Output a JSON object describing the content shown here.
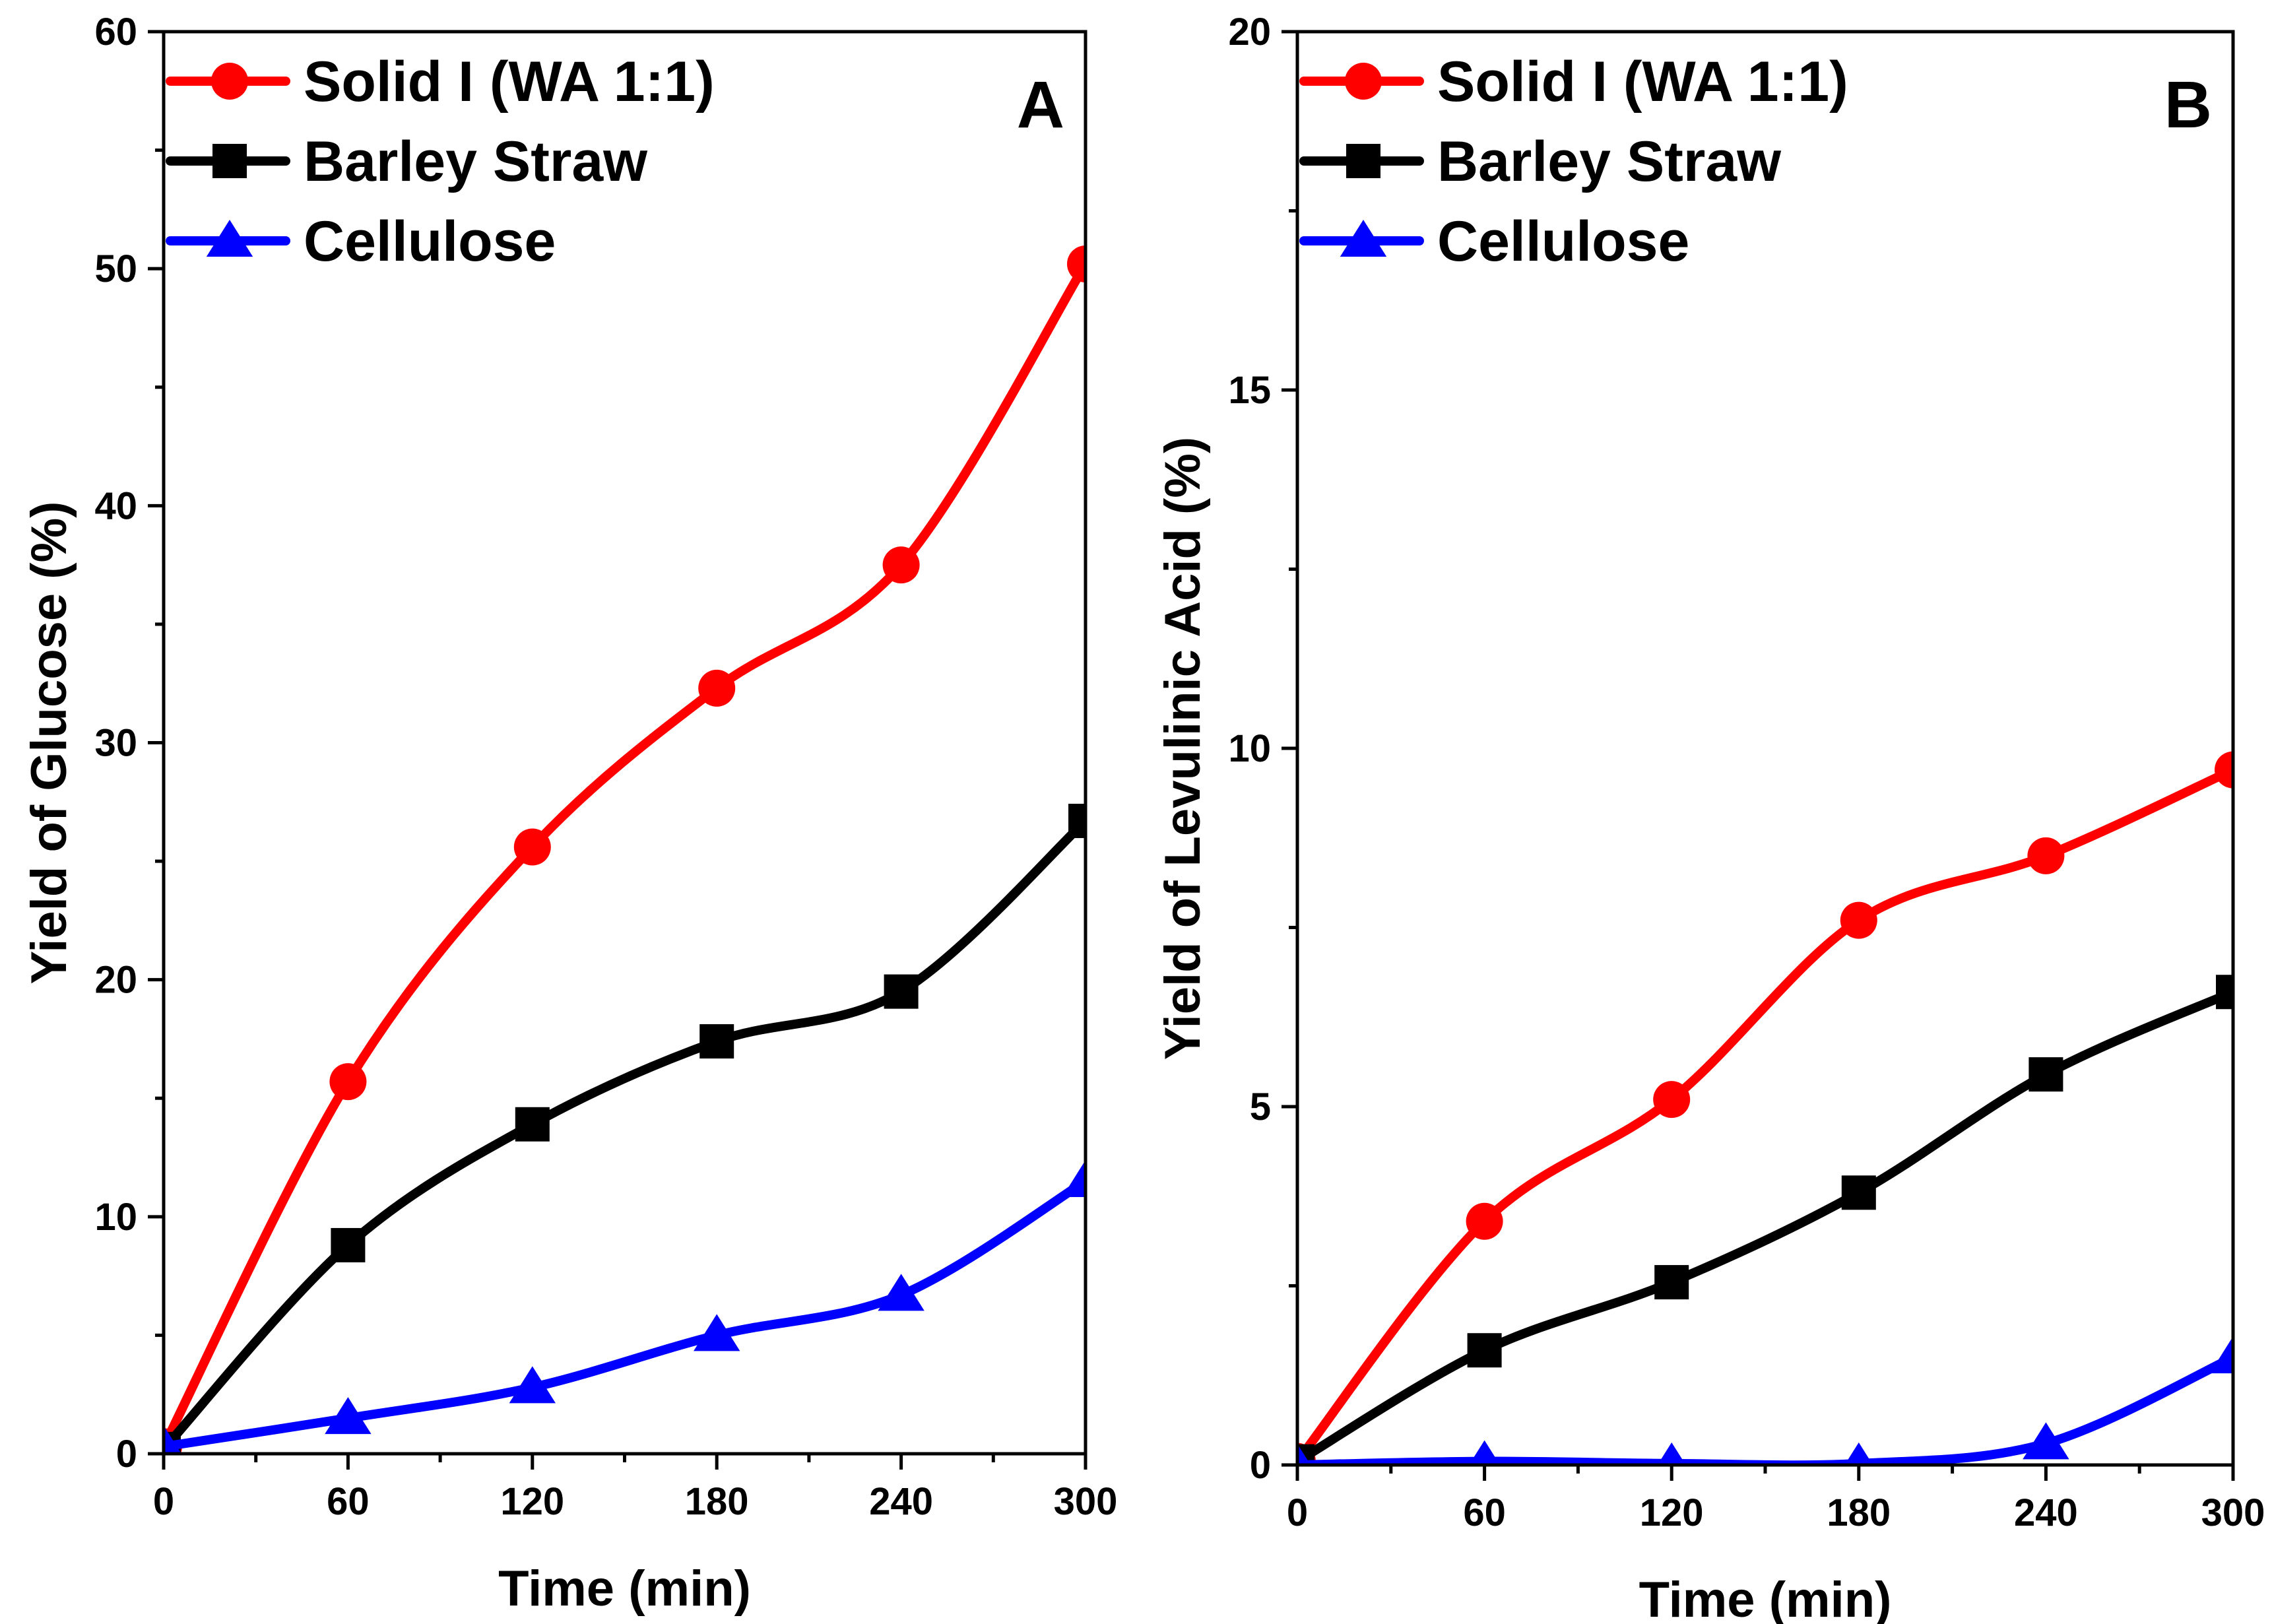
{
  "chart_data": [
    {
      "type": "line",
      "panel_label": "A",
      "xlabel": "Time (min)",
      "ylabel": "Yield of Glucose (%)",
      "xlim": [
        0,
        300
      ],
      "ylim": [
        0,
        60
      ],
      "x_ticks": [
        0,
        60,
        120,
        180,
        240,
        300
      ],
      "x_tick_labels": [
        "0",
        "60",
        "120",
        "180",
        "240",
        "300"
      ],
      "y_ticks": [
        0,
        10,
        20,
        30,
        40,
        50,
        60
      ],
      "y_tick_labels": [
        "0",
        "10",
        "20",
        "30",
        "40",
        "50",
        "60"
      ],
      "x_minor_step": 30,
      "y_minor_step": 5,
      "grid": false,
      "legend_position": "top-left",
      "x": [
        0,
        60,
        120,
        180,
        240,
        300
      ],
      "series": [
        {
          "name": "Solid I (WA 1:1)",
          "color": "#ff0000",
          "marker": "circle",
          "values": [
            0.3,
            15.7,
            25.6,
            32.3,
            37.5,
            50.2
          ]
        },
        {
          "name": "Barley Straw",
          "color": "#000000",
          "marker": "square",
          "values": [
            0.2,
            8.8,
            13.9,
            17.4,
            19.5,
            26.7
          ]
        },
        {
          "name": "Cellulose",
          "color": "#0000ff",
          "marker": "triangle",
          "values": [
            0.3,
            1.5,
            2.8,
            5.0,
            6.7,
            11.5
          ]
        }
      ]
    },
    {
      "type": "line",
      "panel_label": "B",
      "xlabel": "Time (min)",
      "ylabel": "Yield of Levulinic Acid (%)",
      "xlim": [
        0,
        300
      ],
      "ylim": [
        0,
        20
      ],
      "x_ticks": [
        0,
        60,
        120,
        180,
        240,
        300
      ],
      "x_tick_labels": [
        "0",
        "60",
        "120",
        "180",
        "240",
        "300"
      ],
      "y_ticks": [
        0,
        5,
        10,
        15,
        20
      ],
      "y_tick_labels": [
        "0",
        "5",
        "10",
        "15",
        "20"
      ],
      "x_minor_step": 30,
      "y_minor_step": 2.5,
      "grid": false,
      "legend_position": "top-left",
      "x": [
        0,
        60,
        120,
        180,
        240,
        300
      ],
      "series": [
        {
          "name": "Solid I (WA 1:1)",
          "color": "#ff0000",
          "marker": "circle",
          "values": [
            0.05,
            3.4,
            5.1,
            7.6,
            8.5,
            9.7
          ]
        },
        {
          "name": "Barley Straw",
          "color": "#000000",
          "marker": "square",
          "values": [
            0.05,
            1.6,
            2.55,
            3.8,
            5.45,
            6.6
          ]
        },
        {
          "name": "Cellulose",
          "color": "#0000ff",
          "marker": "triangle",
          "values": [
            0.0,
            0.05,
            0.02,
            0.02,
            0.3,
            1.5
          ]
        }
      ]
    }
  ]
}
